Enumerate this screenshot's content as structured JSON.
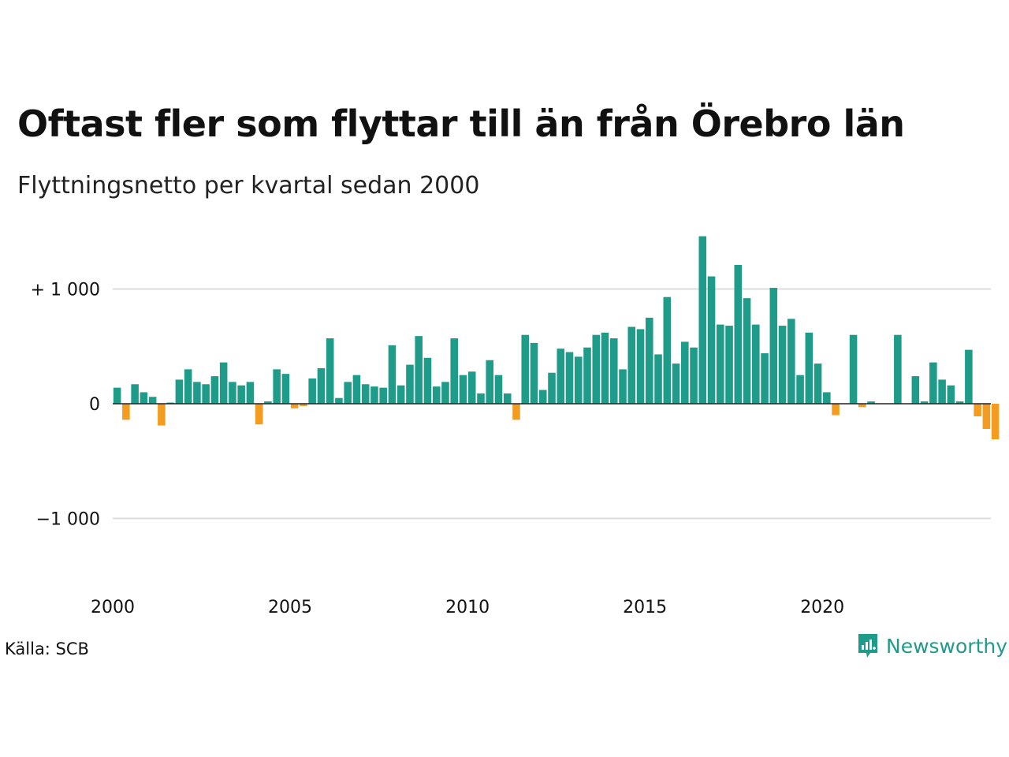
{
  "header": {
    "title": "Oftast fler som flyttar till än från Örebro län",
    "subtitle": "Flyttningsnetto per kvartal sedan 2000"
  },
  "footer": {
    "source": "Källa: SCB",
    "brand": "Newsworthy"
  },
  "colors": {
    "positive": "#1f9b8a",
    "negative": "#f39c1f",
    "grid": "#dddddd",
    "zero_line": "#222222",
    "brand": "#1f9b8a"
  },
  "icons": {
    "brand_logo": "newsworthy-logo-icon"
  },
  "chart_data": {
    "type": "bar",
    "title": "Oftast fler som flyttar till än från Örebro län",
    "subtitle": "Flyttningsnetto per kvartal sedan 2000",
    "xlabel": "",
    "ylabel": "",
    "x_start": 2000,
    "periods_per_year": 4,
    "xlim": [
      2000,
      2024.75
    ],
    "ylim": [
      -1600,
      1600
    ],
    "grid": true,
    "y_ticks": [
      {
        "value": 1000,
        "label": "+ 1 000"
      },
      {
        "value": 0,
        "label": "0"
      },
      {
        "value": -1000,
        "label": "−1 000"
      }
    ],
    "x_ticks": [
      {
        "value": 2000,
        "label": "2000"
      },
      {
        "value": 2005,
        "label": "2005"
      },
      {
        "value": 2010,
        "label": "2010"
      },
      {
        "value": 2015,
        "label": "2015"
      },
      {
        "value": 2020,
        "label": "2020"
      }
    ],
    "values": [
      140,
      -140,
      170,
      100,
      60,
      -190,
      10,
      210,
      300,
      190,
      170,
      240,
      360,
      190,
      160,
      190,
      -180,
      20,
      300,
      260,
      -40,
      -20,
      220,
      310,
      570,
      50,
      190,
      250,
      170,
      150,
      140,
      510,
      160,
      340,
      590,
      400,
      150,
      190,
      570,
      250,
      280,
      90,
      380,
      250,
      90,
      -140,
      600,
      530,
      120,
      270,
      480,
      450,
      410,
      490,
      600,
      620,
      570,
      300,
      670,
      650,
      750,
      430,
      930,
      350,
      540,
      490,
      1460,
      1110,
      690,
      680,
      1210,
      920,
      690,
      440,
      1010,
      680,
      740,
      250,
      620,
      350,
      100,
      -100,
      0,
      600,
      -30,
      20,
      0,
      0,
      600,
      0,
      240,
      20,
      360,
      210,
      160,
      20,
      470,
      -110,
      -220,
      -310
    ]
  }
}
